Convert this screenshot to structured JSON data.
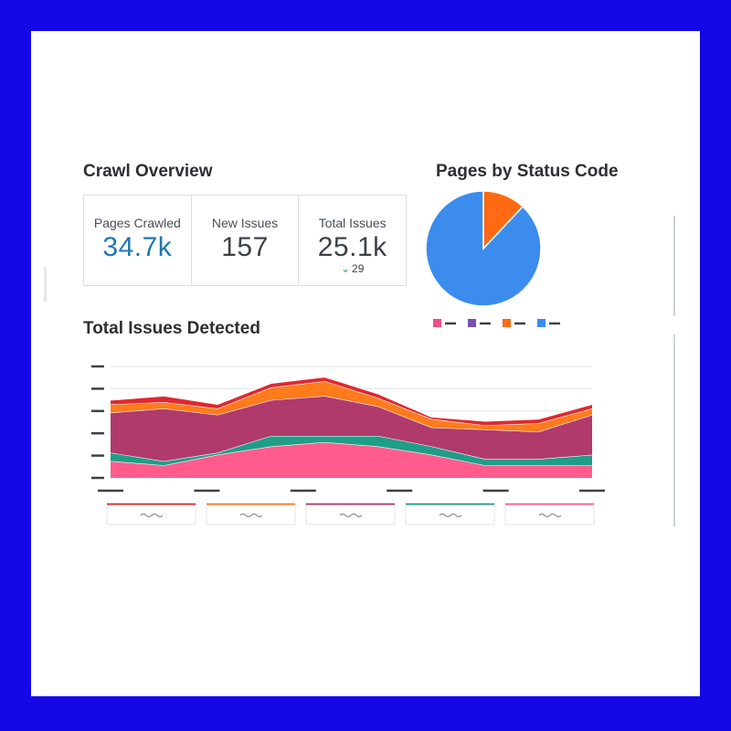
{
  "overview": {
    "title": "Crawl Overview",
    "kpis": [
      {
        "label": "Pages Crawled",
        "value": "34.7k"
      },
      {
        "label": "New Issues",
        "value": "157"
      },
      {
        "label": "Total Issues",
        "value": "25.1k",
        "delta": "29"
      }
    ]
  },
  "status_chart_title": "Pages by Status Code",
  "issues_chart_title": "Total Issues Detected",
  "colors": {
    "background_frame": "#1408e6",
    "kpi_accent": "#1f78b0",
    "delta_up": "#3aa55c"
  },
  "chart_data": [
    {
      "type": "pie",
      "title": "Pages by Status Code",
      "slices": [
        {
          "value": 88,
          "color": "#3b8ced"
        },
        {
          "value": 12,
          "color": "#ff6a13"
        }
      ],
      "legend_colors": [
        "#f04f8c",
        "#7b4fb0",
        "#ff6a13",
        "#3b8ced"
      ],
      "legend_placement": "bottom"
    },
    {
      "type": "area",
      "title": "Total Issues Detected",
      "stacked": true,
      "x": [
        0,
        1,
        2,
        3,
        4,
        5,
        6,
        7,
        8,
        9
      ],
      "series": [
        {
          "color": "#ff5c8d",
          "values": [
            0.8,
            0.6,
            1.1,
            1.5,
            1.7,
            1.5,
            1.1,
            0.6,
            0.6,
            0.6
          ]
        },
        {
          "color": "#1f9e87",
          "values": [
            0.4,
            0.2,
            0.1,
            0.5,
            0.3,
            0.5,
            0.4,
            0.3,
            0.3,
            0.5
          ]
        },
        {
          "color": "#b03a6c",
          "values": [
            1.9,
            2.5,
            1.8,
            1.7,
            1.9,
            1.4,
            0.9,
            1.4,
            1.3,
            1.9
          ]
        },
        {
          "color": "#ff7b1c",
          "values": [
            0.4,
            0.3,
            0.3,
            0.6,
            0.7,
            0.4,
            0.4,
            0.2,
            0.4,
            0.3
          ]
        },
        {
          "color": "#e0282f",
          "values": [
            0.2,
            0.3,
            0.2,
            0.2,
            0.2,
            0.2,
            0.1,
            0.2,
            0.2,
            0.2
          ]
        }
      ],
      "grid": true,
      "legend_placement": "bottom",
      "ylim": [
        0,
        5.3
      ]
    }
  ]
}
